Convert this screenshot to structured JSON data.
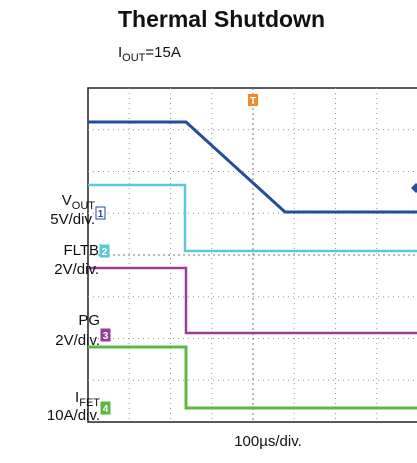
{
  "title": "Thermal Shutdown",
  "condition": {
    "main": "I",
    "sub": "OUT",
    "rest": "=15A"
  },
  "channels": [
    {
      "main": "V",
      "sub": "OUT",
      "scale": "5V/div.",
      "marker": "1"
    },
    {
      "main": "FLTB",
      "scale": "2V/div.",
      "marker": "2"
    },
    {
      "main": "PG",
      "scale": "2V/div.",
      "marker": "3"
    },
    {
      "main": "I",
      "sub": "FET",
      "scale": "10A/div.",
      "marker": "4"
    }
  ],
  "trigger": "T",
  "x_label": "100µs/div."
}
